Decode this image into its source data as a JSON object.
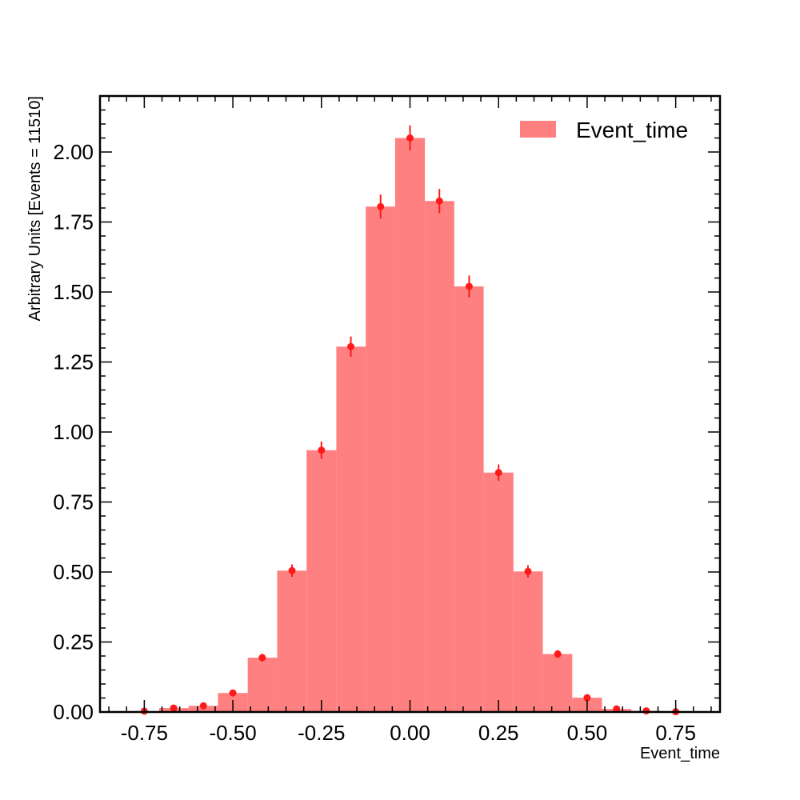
{
  "chart_data": {
    "type": "bar",
    "title": "",
    "xlabel": "Event_time",
    "ylabel": "Arbitrary Units [Events = 11510]",
    "xlim": [
      -0.875,
      0.875
    ],
    "ylim": [
      0,
      2.2
    ],
    "x_ticks": [
      "-0.75",
      "-0.50",
      "-0.25",
      "0.00",
      "0.25",
      "0.50",
      "0.75"
    ],
    "x_tick_values": [
      -0.75,
      -0.5,
      -0.25,
      0.0,
      0.25,
      0.5,
      0.75
    ],
    "y_ticks": [
      "0.00",
      "0.25",
      "0.50",
      "0.75",
      "1.00",
      "1.25",
      "1.50",
      "1.75",
      "2.00"
    ],
    "y_tick_values": [
      0,
      0.25,
      0.5,
      0.75,
      1.0,
      1.25,
      1.5,
      1.75,
      2.0
    ],
    "legend": {
      "label": "Event_time",
      "placement": "top-right"
    },
    "bar_color": "#ff8080",
    "marker_color": "#ff1a1a",
    "bins": [
      {
        "x0": -0.792,
        "x1": -0.708,
        "center": -0.75,
        "value": 0.003,
        "err": 0.003
      },
      {
        "x0": -0.708,
        "x1": -0.625,
        "center": -0.667,
        "value": 0.014,
        "err": 0.006
      },
      {
        "x0": -0.625,
        "x1": -0.542,
        "center": -0.583,
        "value": 0.022,
        "err": 0.007
      },
      {
        "x0": -0.542,
        "x1": -0.458,
        "center": -0.5,
        "value": 0.068,
        "err": 0.011
      },
      {
        "x0": -0.458,
        "x1": -0.375,
        "center": -0.417,
        "value": 0.194,
        "err": 0.014
      },
      {
        "x0": -0.375,
        "x1": -0.292,
        "center": -0.333,
        "value": 0.505,
        "err": 0.022
      },
      {
        "x0": -0.292,
        "x1": -0.208,
        "center": -0.25,
        "value": 0.935,
        "err": 0.031
      },
      {
        "x0": -0.208,
        "x1": -0.125,
        "center": -0.167,
        "value": 1.305,
        "err": 0.036
      },
      {
        "x0": -0.125,
        "x1": -0.042,
        "center": -0.083,
        "value": 1.805,
        "err": 0.043
      },
      {
        "x0": -0.042,
        "x1": 0.042,
        "center": 0.0,
        "value": 2.05,
        "err": 0.045
      },
      {
        "x0": 0.042,
        "x1": 0.125,
        "center": 0.083,
        "value": 1.825,
        "err": 0.043
      },
      {
        "x0": 0.125,
        "x1": 0.208,
        "center": 0.167,
        "value": 1.52,
        "err": 0.039
      },
      {
        "x0": 0.208,
        "x1": 0.292,
        "center": 0.25,
        "value": 0.855,
        "err": 0.029
      },
      {
        "x0": 0.292,
        "x1": 0.375,
        "center": 0.333,
        "value": 0.502,
        "err": 0.022
      },
      {
        "x0": 0.375,
        "x1": 0.458,
        "center": 0.417,
        "value": 0.207,
        "err": 0.014
      },
      {
        "x0": 0.458,
        "x1": 0.542,
        "center": 0.5,
        "value": 0.051,
        "err": 0.007
      },
      {
        "x0": 0.542,
        "x1": 0.625,
        "center": 0.583,
        "value": 0.011,
        "err": 0.005
      },
      {
        "x0": 0.625,
        "x1": 0.708,
        "center": 0.667,
        "value": 0.004,
        "err": 0.003
      },
      {
        "x0": 0.708,
        "x1": 0.792,
        "center": 0.75,
        "value": 0.001,
        "err": 0.002
      }
    ]
  }
}
